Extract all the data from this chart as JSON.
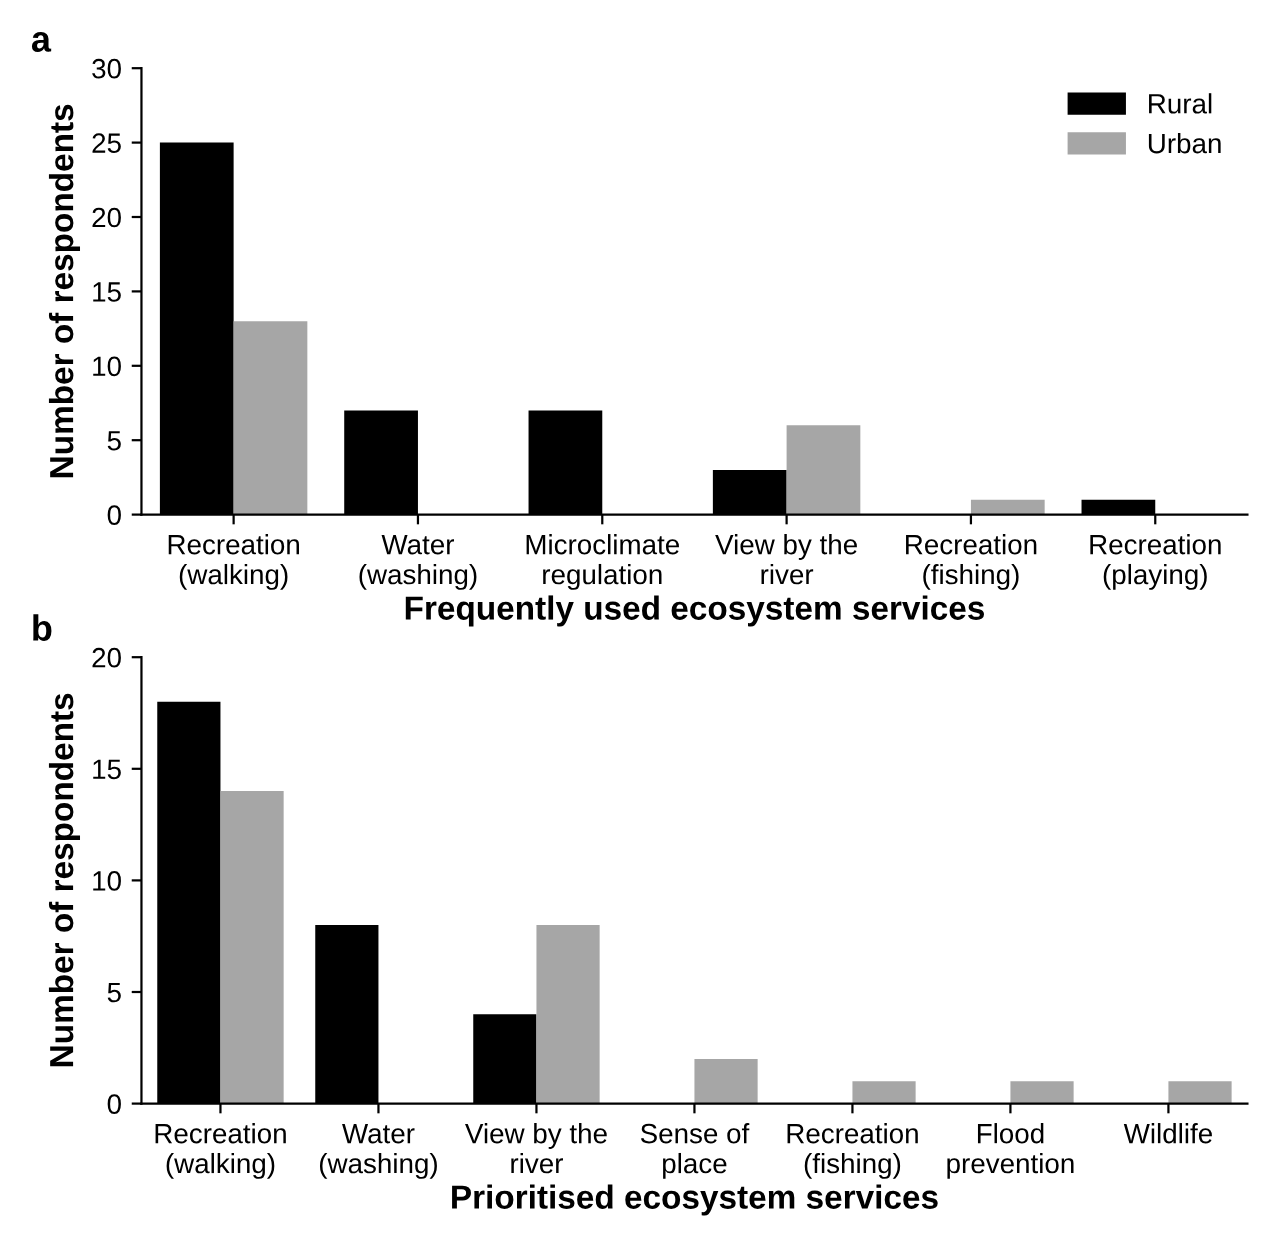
{
  "chart_data": [
    {
      "type": "bar",
      "title": "a",
      "xlabel": "Frequently used ecosystem services",
      "ylabel": "Number of respondents",
      "categories": [
        "Recreation\n(walking)",
        "Water\n(washing)",
        "Microclimate\nregulation",
        "View by the\nriver",
        "Recreation\n(fishing)",
        "Recreation\n(playing)"
      ],
      "series": [
        {
          "name": "Rural",
          "color": "#000000",
          "values": [
            25,
            7,
            7,
            3,
            0,
            1
          ]
        },
        {
          "name": "Urban",
          "color": "#a6a6a6",
          "values": [
            13,
            0,
            0,
            6,
            1,
            0
          ]
        }
      ],
      "ylim": [
        0,
        30
      ],
      "yticks": [
        0,
        5,
        10,
        15,
        20,
        25,
        30
      ],
      "grid": false,
      "legend": "top right"
    },
    {
      "type": "bar",
      "title": "b",
      "xlabel": "Prioritised ecosystem services",
      "ylabel": "Number of respondents",
      "categories": [
        "Recreation\n(walking)",
        "Water\n(washing)",
        "View by the\nriver",
        "Sense of\nplace",
        "Recreation\n(fishing)",
        "Flood\nprevention",
        "Wildlife"
      ],
      "series": [
        {
          "color": "#000000",
          "values": [
            18,
            8,
            4,
            0,
            0,
            0,
            0
          ]
        },
        {
          "color": "#a6a6a6",
          "values": [
            14,
            0,
            8,
            2,
            1,
            1,
            1
          ]
        }
      ],
      "ylim": [
        0,
        20
      ],
      "yticks": [
        0,
        5,
        10,
        15,
        20
      ],
      "grid": false,
      "legend": false
    }
  ]
}
